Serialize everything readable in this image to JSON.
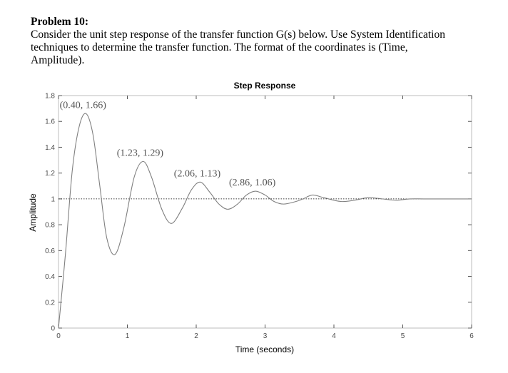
{
  "problem": {
    "heading": "Problem 10:",
    "lines": [
      "Consider the unit step response of the transfer function G(s) below.  Use System Identification",
      "techniques to determine the transfer function.  The format of the coordinates is (Time,",
      "Amplitude)."
    ]
  },
  "chart_data": {
    "type": "line",
    "title": "Step Response",
    "xlabel": "Time (seconds)",
    "ylabel": "Amplitude",
    "xlim": [
      0,
      6
    ],
    "ylim": [
      0,
      1.8
    ],
    "xticks": [
      0,
      1,
      2,
      3,
      4,
      5,
      6
    ],
    "yticks": [
      0,
      0.2,
      0.4,
      0.6,
      0.8,
      1,
      1.2,
      1.4,
      1.6,
      1.8
    ],
    "reference_line": {
      "y": 1,
      "style": "dotted"
    },
    "series": [
      {
        "x": [
          0,
          0.1,
          0.2,
          0.3,
          0.4,
          0.5,
          0.6,
          0.7,
          0.82,
          0.95,
          1.1,
          1.23,
          1.35,
          1.5,
          1.64,
          1.8,
          1.93,
          2.06,
          2.2,
          2.33,
          2.46,
          2.6,
          2.73,
          2.86,
          3.0,
          3.13,
          3.27,
          3.45,
          3.55,
          3.69,
          3.85,
          4.1,
          4.3,
          4.5,
          4.7,
          4.9,
          5.1,
          5.3,
          5.5,
          5.7,
          5.9,
          6.0
        ],
        "y": [
          0,
          0.57,
          1.22,
          1.56,
          1.66,
          1.5,
          1.1,
          0.7,
          0.57,
          0.78,
          1.17,
          1.29,
          1.17,
          0.92,
          0.81,
          0.93,
          1.07,
          1.13,
          1.05,
          0.96,
          0.92,
          0.96,
          1.03,
          1.06,
          1.03,
          0.98,
          0.96,
          0.98,
          1.0,
          1.03,
          1.01,
          0.98,
          0.99,
          1.01,
          1.0,
          0.99,
          1.0,
          1.0,
          1.0,
          1.0,
          1.0,
          1.0
        ],
        "color": "#808080"
      }
    ],
    "annotations": [
      {
        "text": "(0.40, 1.66)",
        "x": 0.4,
        "y": 1.66
      },
      {
        "text": "(1.23, 1.29)",
        "x": 1.23,
        "y": 1.29
      },
      {
        "text": "(2.06, 1.13)",
        "x": 2.06,
        "y": 1.13
      },
      {
        "text": "(2.86, 1.06)",
        "x": 2.86,
        "y": 1.06
      }
    ],
    "grid": false
  }
}
